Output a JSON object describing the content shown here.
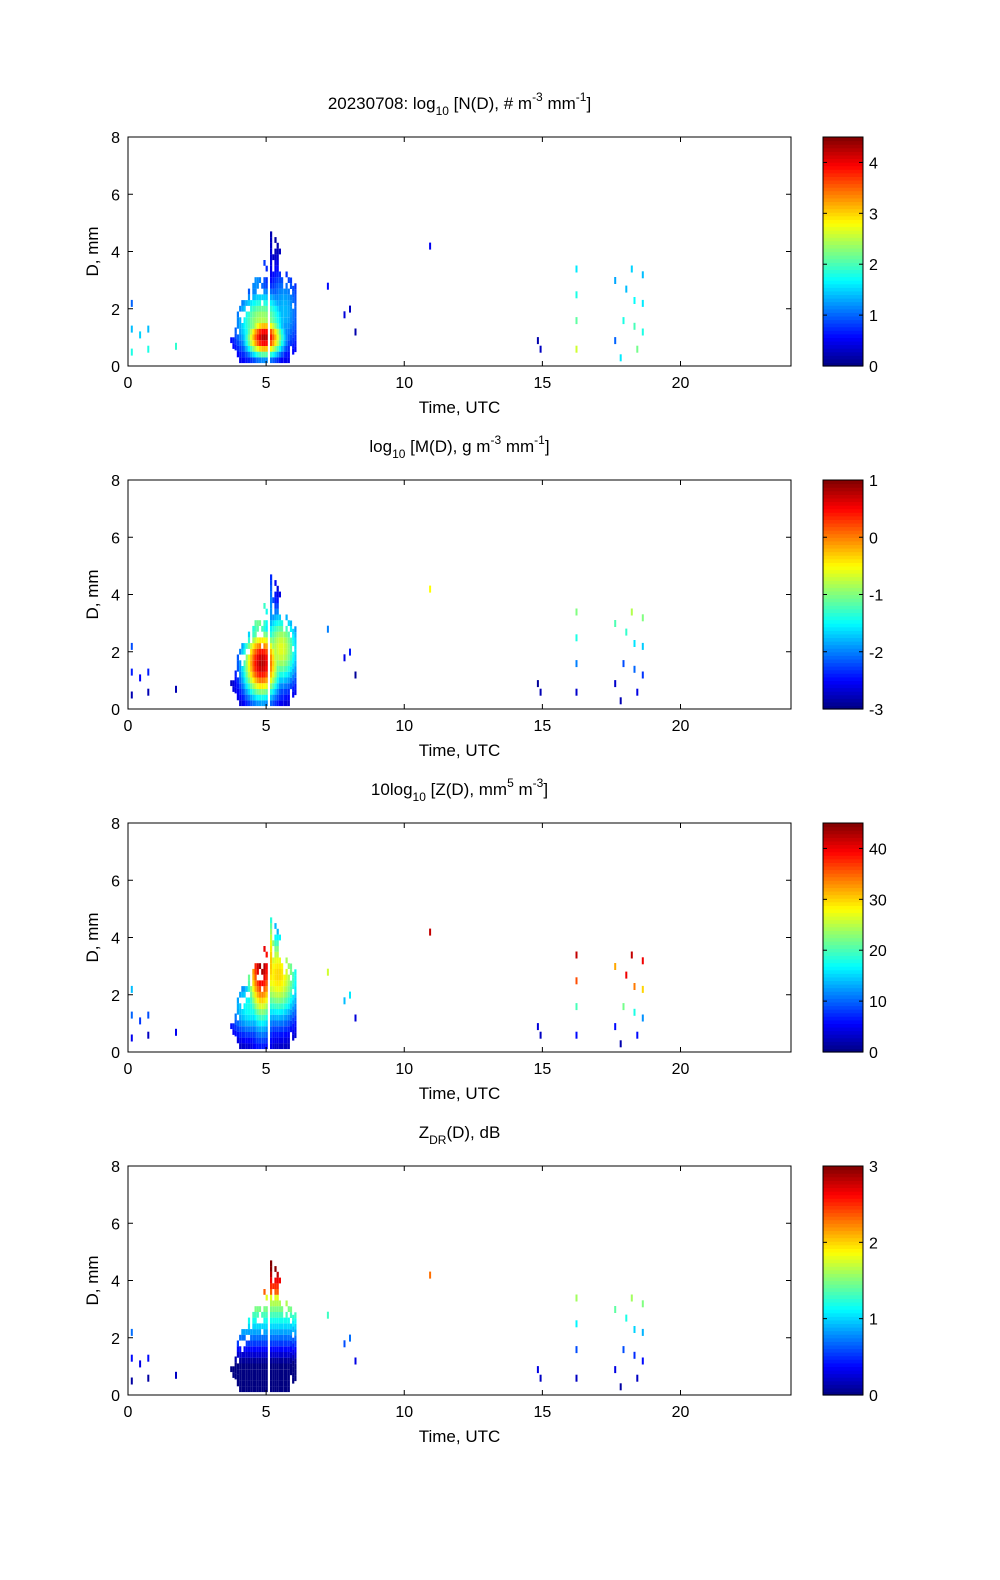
{
  "chart_data": [
    {
      "type": "heatmap",
      "title": {
        "main": "20230708: log",
        "sub": "10",
        "rest": " [N(D), # m",
        "sup1": "-3",
        "rest2": " mm",
        "sup2": "-1",
        "end": "]"
      },
      "xlabel": "Time, UTC",
      "ylabel": "D, mm",
      "xlim": [
        0,
        24
      ],
      "ylim": [
        0,
        8
      ],
      "xticks": [
        0,
        5,
        10,
        15,
        20
      ],
      "yticks": [
        0,
        2,
        4,
        6,
        8
      ],
      "colorbar": {
        "range": [
          0,
          4.5
        ],
        "ticks": [
          0,
          1,
          2,
          3,
          4
        ],
        "colormap": "jet"
      },
      "features": [
        {
          "t": 4.9,
          "d": 0.9,
          "st": 0.5,
          "sd": 0.5,
          "v": 4.3
        },
        {
          "t": 4.8,
          "d": 1.4,
          "st": 0.7,
          "sd": 0.9,
          "v": 2.5
        },
        {
          "t": 4.6,
          "d": 2.8,
          "st": 0.4,
          "sd": 1.4,
          "v": 1.2
        },
        {
          "t": 5.6,
          "d": 1.8,
          "st": 0.5,
          "sd": 1.2,
          "v": 1.4
        }
      ],
      "specks": [
        [
          0.1,
          0.4,
          1.8
        ],
        [
          0.1,
          1.2,
          1.4
        ],
        [
          0.1,
          2.1,
          1.0
        ],
        [
          0.4,
          1.0,
          1.5
        ],
        [
          0.7,
          0.5,
          1.8
        ],
        [
          0.7,
          1.2,
          1.4
        ],
        [
          1.7,
          0.6,
          1.9
        ],
        [
          7.2,
          2.7,
          0.6
        ],
        [
          7.8,
          1.7,
          0.4
        ],
        [
          8.0,
          1.9,
          0.3
        ],
        [
          8.2,
          1.1,
          0.2
        ],
        [
          10.9,
          4.1,
          0.5
        ],
        [
          14.9,
          0.5,
          0.3
        ],
        [
          14.8,
          0.8,
          0.2
        ],
        [
          16.2,
          3.3,
          1.6
        ],
        [
          16.2,
          2.4,
          1.8
        ],
        [
          16.2,
          1.5,
          2.1
        ],
        [
          16.2,
          0.5,
          2.6
        ],
        [
          17.6,
          2.9,
          1.3
        ],
        [
          17.6,
          0.8,
          1.0
        ],
        [
          17.8,
          0.2,
          1.6
        ],
        [
          17.9,
          1.5,
          1.8
        ],
        [
          18.0,
          2.6,
          1.4
        ],
        [
          18.2,
          3.3,
          1.5
        ],
        [
          18.3,
          2.2,
          1.7
        ],
        [
          18.3,
          1.3,
          2.0
        ],
        [
          18.4,
          0.5,
          2.2
        ],
        [
          18.6,
          3.1,
          1.4
        ],
        [
          18.6,
          2.1,
          1.6
        ],
        [
          18.6,
          1.1,
          1.8
        ]
      ]
    },
    {
      "type": "heatmap",
      "title": {
        "main": "log",
        "sub": "10",
        "rest": " [M(D), g m",
        "sup1": "-3",
        "rest2": " mm",
        "sup2": "-1",
        "end": "]"
      },
      "xlabel": "Time, UTC",
      "ylabel": "D, mm",
      "xlim": [
        0,
        24
      ],
      "ylim": [
        0,
        8
      ],
      "xticks": [
        0,
        5,
        10,
        15,
        20
      ],
      "yticks": [
        0,
        2,
        4,
        6,
        8
      ],
      "colorbar": {
        "range": [
          -3,
          1
        ],
        "ticks": [
          1,
          0,
          -1,
          -2,
          -3
        ],
        "colormap": "jet"
      },
      "features": [
        {
          "t": 4.8,
          "d": 1.5,
          "st": 0.5,
          "sd": 0.9,
          "v": 0.8
        },
        {
          "t": 4.7,
          "d": 3.2,
          "st": 0.4,
          "sd": 1.3,
          "v": -1.0
        },
        {
          "t": 4.9,
          "d": 0.5,
          "st": 0.8,
          "sd": 0.4,
          "v": -2.0
        },
        {
          "t": 5.5,
          "d": 2.0,
          "st": 0.5,
          "sd": 1.0,
          "v": -0.6
        }
      ],
      "specks": [
        [
          0.1,
          0.4,
          -2.8
        ],
        [
          0.1,
          1.2,
          -2.4
        ],
        [
          0.1,
          2.1,
          -2.2
        ],
        [
          0.4,
          1.0,
          -2.5
        ],
        [
          0.7,
          0.5,
          -2.8
        ],
        [
          0.7,
          1.2,
          -2.4
        ],
        [
          1.7,
          0.6,
          -2.8
        ],
        [
          7.2,
          2.7,
          -2.0
        ],
        [
          7.8,
          1.7,
          -2.6
        ],
        [
          8.0,
          1.9,
          -2.4
        ],
        [
          8.2,
          1.1,
          -2.9
        ],
        [
          10.9,
          4.1,
          -0.5
        ],
        [
          14.9,
          0.5,
          -2.8
        ],
        [
          14.8,
          0.8,
          -2.9
        ],
        [
          16.2,
          3.3,
          -1.0
        ],
        [
          16.2,
          2.4,
          -1.4
        ],
        [
          16.2,
          1.5,
          -2.0
        ],
        [
          16.2,
          0.5,
          -2.7
        ],
        [
          17.6,
          2.9,
          -1.2
        ],
        [
          17.6,
          0.8,
          -2.7
        ],
        [
          17.8,
          0.2,
          -2.8
        ],
        [
          17.9,
          1.5,
          -2.2
        ],
        [
          18.0,
          2.6,
          -1.3
        ],
        [
          18.2,
          3.3,
          -0.8
        ],
        [
          18.3,
          2.2,
          -1.6
        ],
        [
          18.3,
          1.3,
          -2.1
        ],
        [
          18.4,
          0.5,
          -2.6
        ],
        [
          18.6,
          3.1,
          -1.0
        ],
        [
          18.6,
          2.1,
          -1.7
        ],
        [
          18.6,
          1.1,
          -2.3
        ]
      ]
    },
    {
      "type": "heatmap",
      "title": {
        "main": "10log",
        "sub": "10",
        "rest": " [Z(D),  mm",
        "sup1": "5",
        "rest2": " m",
        "sup2": "-3",
        "end": "]"
      },
      "xlabel": "Time, UTC",
      "ylabel": "D, mm",
      "xlim": [
        0,
        24
      ],
      "ylim": [
        0,
        8
      ],
      "xticks": [
        0,
        5,
        10,
        15,
        20
      ],
      "yticks": [
        0,
        2,
        4,
        6,
        8
      ],
      "colorbar": {
        "range": [
          0,
          45
        ],
        "ticks": [
          40,
          30,
          20,
          10,
          0
        ],
        "colormap": "jet"
      },
      "features": [
        {
          "t": 4.8,
          "d": 3.0,
          "st": 0.4,
          "sd": 1.5,
          "v": 44
        },
        {
          "t": 5.4,
          "d": 2.6,
          "st": 0.6,
          "sd": 1.2,
          "v": 30
        },
        {
          "t": 4.4,
          "d": 1.5,
          "st": 0.6,
          "sd": 0.8,
          "v": 18
        },
        {
          "t": 4.9,
          "d": 0.4,
          "st": 0.9,
          "sd": 0.4,
          "v": 4
        }
      ],
      "specks": [
        [
          0.1,
          0.4,
          5
        ],
        [
          0.1,
          1.2,
          10
        ],
        [
          0.1,
          2.1,
          14
        ],
        [
          0.4,
          1.0,
          8
        ],
        [
          0.7,
          0.5,
          3
        ],
        [
          0.7,
          1.2,
          9
        ],
        [
          1.7,
          0.6,
          5
        ],
        [
          7.2,
          2.7,
          26
        ],
        [
          7.8,
          1.7,
          14
        ],
        [
          8.0,
          1.9,
          16
        ],
        [
          8.2,
          1.1,
          4
        ],
        [
          10.9,
          4.1,
          42
        ],
        [
          14.9,
          0.5,
          3
        ],
        [
          14.8,
          0.8,
          4
        ],
        [
          16.2,
          3.3,
          42
        ],
        [
          16.2,
          2.4,
          36
        ],
        [
          16.2,
          1.5,
          20
        ],
        [
          16.2,
          0.5,
          6
        ],
        [
          17.6,
          2.9,
          32
        ],
        [
          17.6,
          0.8,
          6
        ],
        [
          17.8,
          0.2,
          2
        ],
        [
          17.9,
          1.5,
          22
        ],
        [
          18.0,
          2.6,
          40
        ],
        [
          18.2,
          3.3,
          42
        ],
        [
          18.3,
          2.2,
          34
        ],
        [
          18.3,
          1.3,
          18
        ],
        [
          18.4,
          0.5,
          6
        ],
        [
          18.6,
          3.1,
          40
        ],
        [
          18.6,
          2.1,
          30
        ],
        [
          18.6,
          1.1,
          12
        ]
      ]
    },
    {
      "type": "heatmap",
      "title": {
        "main": "Z",
        "sub": "DR",
        "rest": "(D), dB",
        "sup1": "",
        "rest2": "",
        "sup2": "",
        "end": ""
      },
      "xlabel": "Time, UTC",
      "ylabel": "D, mm",
      "xlim": [
        0,
        24
      ],
      "ylim": [
        0,
        8
      ],
      "xticks": [
        0,
        5,
        10,
        15,
        20
      ],
      "yticks": [
        0,
        2,
        4,
        6,
        8
      ],
      "colorbar": {
        "range": [
          0,
          3
        ],
        "ticks": [
          3,
          2,
          1,
          0
        ],
        "colormap": "jet"
      },
      "diameter_coloring": true,
      "specks": [
        [
          0.1,
          0.4,
          0.1
        ],
        [
          0.1,
          1.2,
          0.4
        ],
        [
          0.1,
          2.1,
          0.7
        ],
        [
          0.4,
          1.0,
          0.3
        ],
        [
          0.7,
          0.5,
          0.1
        ],
        [
          0.7,
          1.2,
          0.4
        ],
        [
          1.7,
          0.6,
          0.2
        ],
        [
          7.2,
          2.7,
          1.3
        ],
        [
          7.8,
          1.7,
          0.6
        ],
        [
          8.0,
          1.9,
          0.7
        ],
        [
          8.2,
          1.1,
          0.3
        ],
        [
          10.9,
          4.1,
          2.3
        ],
        [
          14.9,
          0.5,
          0.2
        ],
        [
          14.8,
          0.8,
          0.3
        ],
        [
          16.2,
          3.3,
          1.6
        ],
        [
          16.2,
          2.4,
          1.1
        ],
        [
          16.2,
          1.5,
          0.6
        ],
        [
          16.2,
          0.5,
          0.2
        ],
        [
          17.6,
          2.9,
          1.4
        ],
        [
          17.6,
          0.8,
          0.3
        ],
        [
          17.8,
          0.2,
          0.1
        ],
        [
          17.9,
          1.5,
          0.6
        ],
        [
          18.0,
          2.6,
          1.2
        ],
        [
          18.2,
          3.3,
          1.6
        ],
        [
          18.3,
          2.2,
          1.0
        ],
        [
          18.3,
          1.3,
          0.5
        ],
        [
          18.4,
          0.5,
          0.2
        ],
        [
          18.6,
          3.1,
          1.5
        ],
        [
          18.6,
          2.1,
          0.9
        ],
        [
          18.6,
          1.1,
          0.4
        ]
      ]
    }
  ]
}
